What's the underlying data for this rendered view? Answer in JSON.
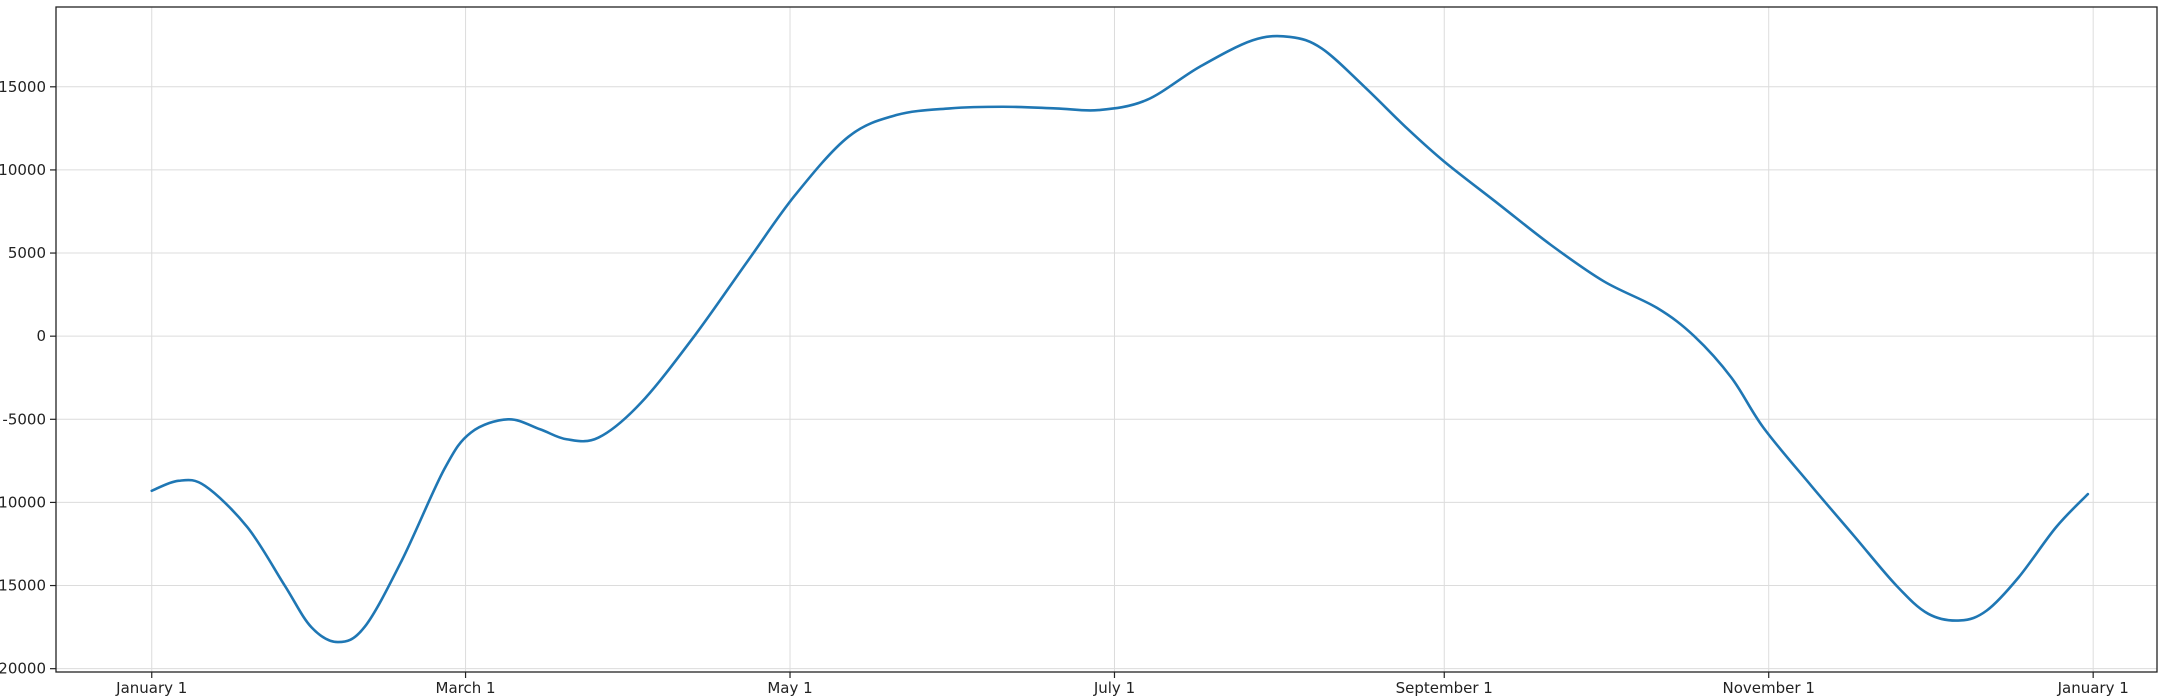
{
  "chart_data": {
    "type": "line",
    "title": "",
    "xlabel": "",
    "ylabel": "",
    "x_ticks": [
      {
        "label": "January 1",
        "day": 0
      },
      {
        "label": "March 1",
        "day": 59
      },
      {
        "label": "May 1",
        "day": 120
      },
      {
        "label": "July 1",
        "day": 181
      },
      {
        "label": "September 1",
        "day": 243
      },
      {
        "label": "November 1",
        "day": 304
      },
      {
        "label": "January 1",
        "day": 365
      }
    ],
    "xlim": [
      -18,
      377
    ],
    "y_ticks": [
      15000,
      10000,
      5000,
      0,
      -5000,
      -10000,
      -15000,
      -20000
    ],
    "ylim": [
      -20200,
      19800
    ],
    "grid": true,
    "color": "#1f77b4",
    "series": [
      {
        "name": "",
        "points": [
          [
            0,
            -9300
          ],
          [
            5,
            -8700
          ],
          [
            10,
            -9000
          ],
          [
            18,
            -11500
          ],
          [
            25,
            -15000
          ],
          [
            30,
            -17500
          ],
          [
            35,
            -18400
          ],
          [
            40,
            -17500
          ],
          [
            47,
            -13500
          ],
          [
            55,
            -8000
          ],
          [
            60,
            -5800
          ],
          [
            67,
            -5000
          ],
          [
            73,
            -5600
          ],
          [
            78,
            -6200
          ],
          [
            84,
            -6100
          ],
          [
            92,
            -4000
          ],
          [
            102,
            0
          ],
          [
            112,
            4500
          ],
          [
            121,
            8500
          ],
          [
            131,
            12000
          ],
          [
            140,
            13300
          ],
          [
            150,
            13700
          ],
          [
            160,
            13800
          ],
          [
            170,
            13700
          ],
          [
            178,
            13600
          ],
          [
            187,
            14200
          ],
          [
            197,
            16200
          ],
          [
            207,
            17800
          ],
          [
            214,
            18000
          ],
          [
            220,
            17300
          ],
          [
            228,
            15000
          ],
          [
            236,
            12500
          ],
          [
            243,
            10500
          ],
          [
            253,
            8000
          ],
          [
            263,
            5500
          ],
          [
            273,
            3300
          ],
          [
            283,
            1700
          ],
          [
            290,
            0
          ],
          [
            297,
            -2500
          ],
          [
            303,
            -5500
          ],
          [
            312,
            -9000
          ],
          [
            320,
            -12000
          ],
          [
            328,
            -15000
          ],
          [
            334,
            -16700
          ],
          [
            340,
            -17100
          ],
          [
            345,
            -16500
          ],
          [
            351,
            -14500
          ],
          [
            358,
            -11500
          ],
          [
            364,
            -9500
          ]
        ]
      }
    ]
  }
}
